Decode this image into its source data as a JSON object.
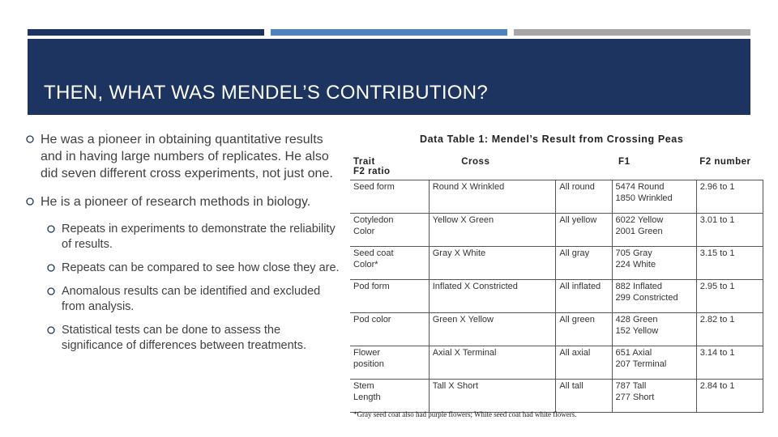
{
  "slide": {
    "title": "THEN, WHAT WAS MENDEL’S CONTRIBUTION?",
    "accent_colors": {
      "dark_navy": "#1d3461",
      "blue": "#4f81bd",
      "gray": "#a6a6a6"
    },
    "bullet_icon": "circle-bullet-icon",
    "bullets": [
      "He was a pioneer in obtaining quantitative results and in having large numbers of replicates. He also did seven different cross experiments, not just one.",
      "He is a pioneer of research methods in biology."
    ],
    "sub_bullets": [
      "Repeats in experiments to demonstrate the reliability of results.",
      "Repeats can be compared to see how close they are.",
      "Anomalous results can be identified and excluded from analysis.",
      "Statistical tests can be done to assess the significance of differences between treatments."
    ]
  },
  "table": {
    "caption": "Data Table 1: Mendel’s Result from Crossing Peas",
    "headers": {
      "trait": "Trait",
      "f2_ratio": "F2 ratio",
      "cross": "Cross",
      "f1": "F1",
      "f2_number": "F2 number"
    },
    "rows": [
      {
        "trait": "Seed form",
        "cross": "Round X Wrinkled",
        "f1": "All round",
        "f2a": "5474 Round",
        "f2b": "1850 Wrinkled",
        "ratio": "2.96 to 1"
      },
      {
        "trait": "Cotyledon",
        "trait2": "Color",
        "cross": "Yellow X Green",
        "f1": "All yellow",
        "f2a": "6022 Yellow",
        "f2b": "2001 Green",
        "ratio": "3.01 to 1"
      },
      {
        "trait": "Seed coat",
        "trait2": "Color*",
        "cross": "Gray X White",
        "f1": "All gray",
        "f2a": "705 Gray",
        "f2b": "224 White",
        "ratio": "3.15 to 1"
      },
      {
        "trait": "Pod form",
        "cross": "Inflated X Constricted",
        "f1": "All inflated",
        "f2a": "882 Inflated",
        "f2b": "299 Constricted",
        "ratio": "2.95 to 1"
      },
      {
        "trait": "Pod color",
        "cross": "Green X Yellow",
        "f1": "All green",
        "f2a": "428 Green",
        "f2b": "152 Yellow",
        "ratio": "2.82 to 1"
      },
      {
        "trait": "Flower",
        "trait2": "position",
        "cross": "Axial X Terminal",
        "f1": "All axial",
        "f2a": "651 Axial",
        "f2b": "207 Terminal",
        "ratio": "3.14 to 1"
      },
      {
        "trait": "Stem",
        "trait2": "Length",
        "cross": "Tall X Short",
        "f1": "All tall",
        "f2a": "787 Tall",
        "f2b": "277 Short",
        "ratio": "2.84 to 1"
      }
    ],
    "footnote": "*Gray seed coat also had purple flowers; White seed coat had white flowers."
  }
}
